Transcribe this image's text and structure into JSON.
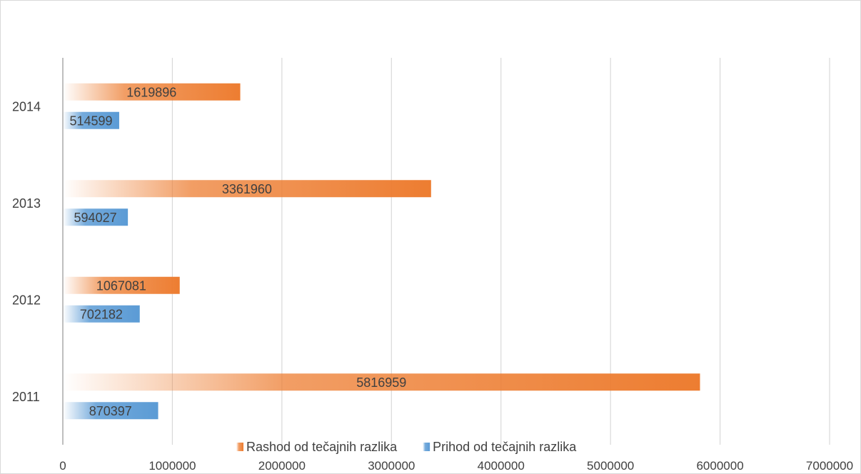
{
  "chart_data": {
    "type": "bar",
    "orientation": "horizontal",
    "title": "",
    "xlabel": "",
    "ylabel": "",
    "categories": [
      "2011",
      "2012",
      "2013",
      "2014"
    ],
    "series": [
      {
        "name": "Prihod od tečajnih razlika",
        "values": [
          870397,
          702182,
          594027,
          514599
        ],
        "color": "#5b9bd5"
      },
      {
        "name": "Rashod od tečajnih razlika",
        "values": [
          5816959,
          1067081,
          3361960,
          1619896
        ],
        "color": "#ed7d31"
      }
    ],
    "xlim": [
      0,
      7000000
    ],
    "x_ticks": [
      "0",
      "1000000",
      "2000000",
      "3000000",
      "4000000",
      "5000000",
      "6000000",
      "7000000"
    ],
    "grid": "vertical",
    "legend_position": "bottom",
    "legend_order": [
      "Rashod od tečajnih razlika",
      "Prihod od tečajnih razlika"
    ],
    "bar_style": "gradient-fade-left"
  }
}
